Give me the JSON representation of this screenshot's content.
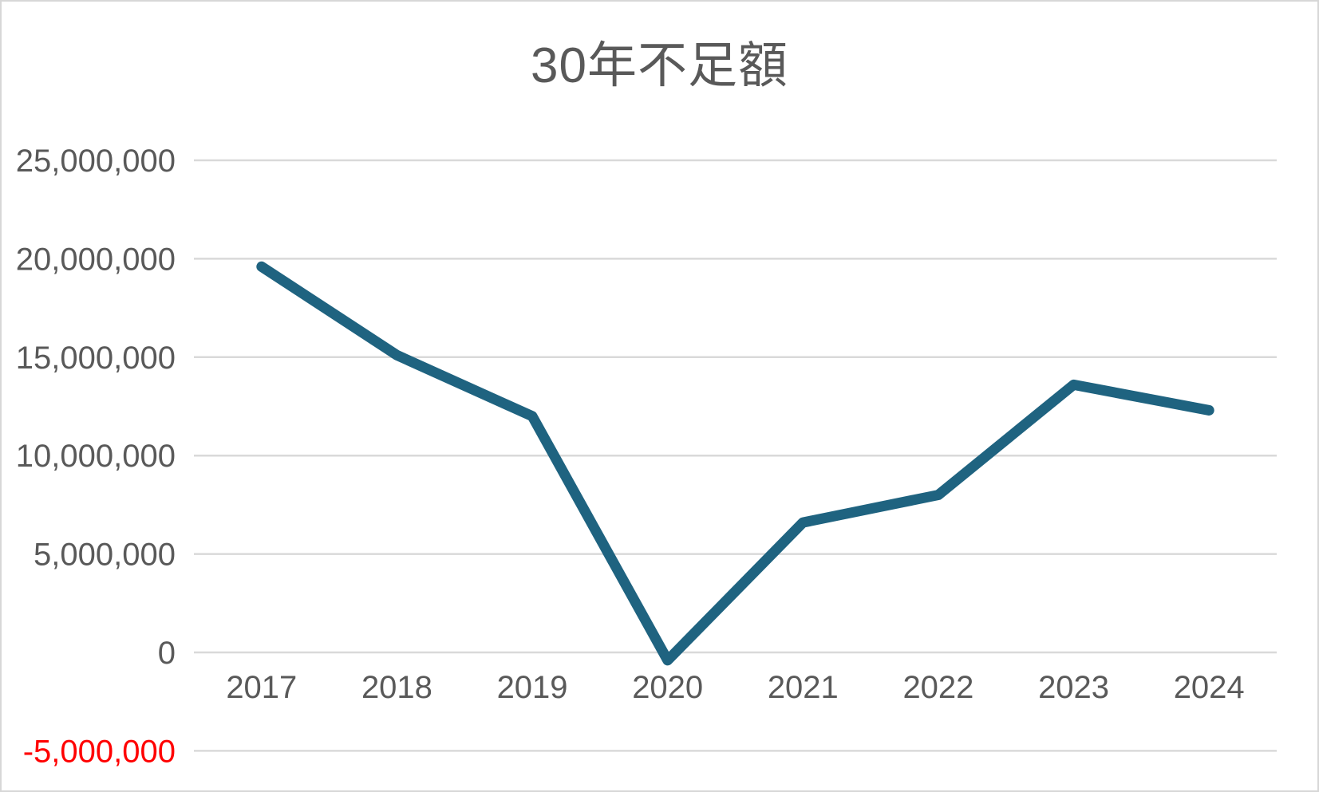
{
  "chart_data": {
    "type": "line",
    "title": "30年不足額",
    "categories": [
      "2017",
      "2018",
      "2019",
      "2020",
      "2021",
      "2022",
      "2023",
      "2024"
    ],
    "series": [
      {
        "name": "30年不足額",
        "values": [
          19600000,
          15100000,
          12000000,
          -400000,
          6600000,
          8000000,
          13600000,
          12300000
        ]
      }
    ],
    "xlabel": "",
    "ylabel": "",
    "ylim": [
      -5000000,
      25000000
    ],
    "ytick_step": 5000000,
    "ytick_labels": [
      "-5,000,000",
      "0",
      "5,000,000",
      "10,000,000",
      "15,000,000",
      "20,000,000",
      "25,000,000"
    ],
    "grid": "horizontal",
    "legend": "none",
    "colors": {
      "line": "#1F6380",
      "gridline": "#D9D9D9",
      "title": "#595959",
      "axis_label": "#595959",
      "negative_label": "#FF0000",
      "background": "#FFFFFF",
      "border": "#D7D7D7"
    }
  }
}
